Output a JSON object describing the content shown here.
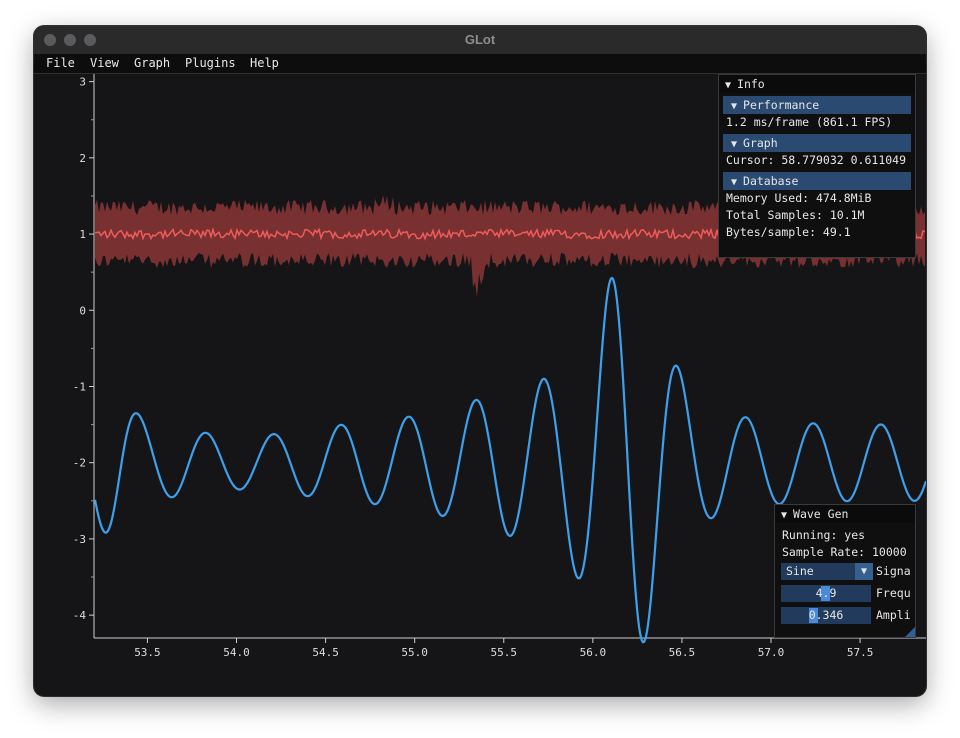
{
  "window": {
    "title": "GLot"
  },
  "menu": [
    "File",
    "View",
    "Graph",
    "Plugins",
    "Help"
  ],
  "colors": {
    "red_series": "#ef5b5b",
    "blue_series": "#3ca0ec",
    "header": "#2a4a72",
    "background": "#151517"
  },
  "chart_data": {
    "type": "line",
    "x_ticks": [
      "53.5",
      "54.0",
      "54.5",
      "55.0",
      "55.5",
      "56.0",
      "56.5",
      "57.0",
      "57.5"
    ],
    "y_ticks": [
      "3",
      "2",
      "1",
      "0",
      "-1",
      "-2",
      "-3",
      "-4"
    ],
    "xlim": [
      53.2,
      57.87
    ],
    "ylim": [
      -4.3,
      3.1
    ],
    "series": [
      {
        "color": "#ef5b5b",
        "mean": 1.0,
        "band_min": 0.55,
        "band_max": 1.45
      },
      {
        "color": "#3ca0ec",
        "center": -2.0,
        "frequency": 4.9,
        "min": -4.05,
        "max": 0.25
      }
    ]
  },
  "info": {
    "title": "Info",
    "performance_header": "Performance",
    "frame": "1.2 ms/frame (861.1 FPS)",
    "graph_header": "Graph",
    "cursor": "Cursor: 58.779032 0.611049",
    "database_header": "Database",
    "memory": "Memory Used: 474.8MiB",
    "samples": "Total Samples: 10.1M",
    "bytes": "Bytes/sample: 49.1"
  },
  "wavegen": {
    "title": "Wave Gen",
    "running": "Running: yes",
    "sample_rate": "Sample Rate: 10000",
    "signal_value": "Sine",
    "signal_label": "Signa",
    "frequency_value": "4.9",
    "frequency_label": "Frequ",
    "frequency_fill": 0.49,
    "amplitude_value": "0.346",
    "amplitude_label": "Ampli",
    "amplitude_fill": 0.346
  }
}
